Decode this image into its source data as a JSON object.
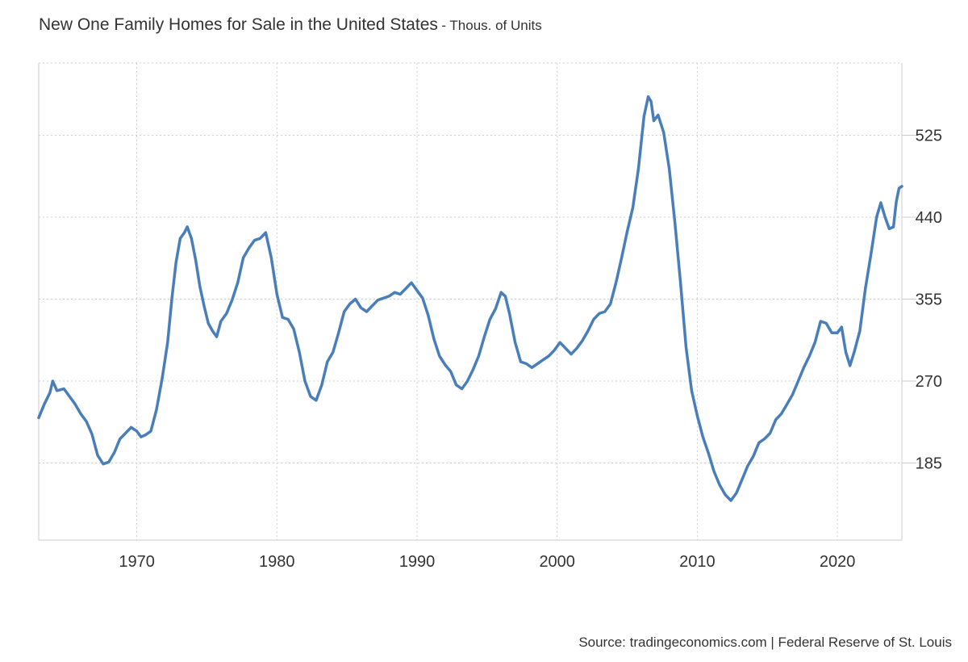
{
  "chart_data": {
    "type": "line",
    "title": "New One Family Homes for Sale in the United States",
    "subtitle": "- Thous. of Units",
    "xlabel": "",
    "ylabel": "",
    "xlim": [
      1963.0,
      2024.6
    ],
    "ylim": [
      105,
      600
    ],
    "x_ticks": [
      1970,
      1980,
      1990,
      2000,
      2010,
      2020
    ],
    "y_ticks": [
      185,
      270,
      355,
      440,
      525
    ],
    "grid": true,
    "legend": "none",
    "series": [
      {
        "color": "#4a7ebb",
        "points": [
          [
            1963.0,
            232
          ],
          [
            1963.4,
            246
          ],
          [
            1963.8,
            258
          ],
          [
            1964.0,
            270
          ],
          [
            1964.3,
            260
          ],
          [
            1964.8,
            262
          ],
          [
            1965.2,
            254
          ],
          [
            1965.6,
            246
          ],
          [
            1966.0,
            236
          ],
          [
            1966.4,
            228
          ],
          [
            1966.8,
            215
          ],
          [
            1967.2,
            193
          ],
          [
            1967.6,
            184
          ],
          [
            1968.0,
            186
          ],
          [
            1968.4,
            196
          ],
          [
            1968.8,
            210
          ],
          [
            1969.2,
            216
          ],
          [
            1969.6,
            222
          ],
          [
            1970.0,
            218
          ],
          [
            1970.3,
            212
          ],
          [
            1970.6,
            214
          ],
          [
            1971.0,
            218
          ],
          [
            1971.4,
            240
          ],
          [
            1971.8,
            272
          ],
          [
            1972.2,
            310
          ],
          [
            1972.5,
            355
          ],
          [
            1972.8,
            393
          ],
          [
            1973.1,
            418
          ],
          [
            1973.4,
            424
          ],
          [
            1973.6,
            430
          ],
          [
            1973.9,
            418
          ],
          [
            1974.2,
            396
          ],
          [
            1974.5,
            368
          ],
          [
            1974.8,
            348
          ],
          [
            1975.1,
            330
          ],
          [
            1975.4,
            322
          ],
          [
            1975.7,
            316
          ],
          [
            1976.0,
            332
          ],
          [
            1976.4,
            340
          ],
          [
            1976.8,
            354
          ],
          [
            1977.2,
            372
          ],
          [
            1977.6,
            398
          ],
          [
            1978.0,
            408
          ],
          [
            1978.4,
            416
          ],
          [
            1978.8,
            418
          ],
          [
            1979.2,
            424
          ],
          [
            1979.6,
            398
          ],
          [
            1980.0,
            360
          ],
          [
            1980.4,
            336
          ],
          [
            1980.8,
            334
          ],
          [
            1981.2,
            324
          ],
          [
            1981.6,
            300
          ],
          [
            1982.0,
            270
          ],
          [
            1982.4,
            254
          ],
          [
            1982.8,
            250
          ],
          [
            1983.2,
            266
          ],
          [
            1983.6,
            290
          ],
          [
            1984.0,
            300
          ],
          [
            1984.4,
            320
          ],
          [
            1984.8,
            342
          ],
          [
            1985.2,
            350
          ],
          [
            1985.6,
            355
          ],
          [
            1986.0,
            346
          ],
          [
            1986.4,
            342
          ],
          [
            1986.8,
            348
          ],
          [
            1987.2,
            354
          ],
          [
            1987.6,
            356
          ],
          [
            1988.0,
            358
          ],
          [
            1988.4,
            362
          ],
          [
            1988.8,
            360
          ],
          [
            1989.2,
            366
          ],
          [
            1989.6,
            372
          ],
          [
            1990.0,
            364
          ],
          [
            1990.4,
            356
          ],
          [
            1990.8,
            338
          ],
          [
            1991.2,
            314
          ],
          [
            1991.6,
            296
          ],
          [
            1992.0,
            287
          ],
          [
            1992.4,
            280
          ],
          [
            1992.8,
            266
          ],
          [
            1993.2,
            262
          ],
          [
            1993.6,
            270
          ],
          [
            1994.0,
            282
          ],
          [
            1994.4,
            296
          ],
          [
            1994.8,
            316
          ],
          [
            1995.2,
            334
          ],
          [
            1995.6,
            345
          ],
          [
            1996.0,
            362
          ],
          [
            1996.3,
            358
          ],
          [
            1996.6,
            340
          ],
          [
            1997.0,
            310
          ],
          [
            1997.4,
            290
          ],
          [
            1997.8,
            288
          ],
          [
            1998.2,
            284
          ],
          [
            1998.6,
            288
          ],
          [
            1999.0,
            292
          ],
          [
            1999.4,
            296
          ],
          [
            1999.8,
            302
          ],
          [
            2000.2,
            310
          ],
          [
            2000.6,
            304
          ],
          [
            2001.0,
            298
          ],
          [
            2001.4,
            304
          ],
          [
            2001.8,
            312
          ],
          [
            2002.2,
            322
          ],
          [
            2002.6,
            334
          ],
          [
            2003.0,
            340
          ],
          [
            2003.4,
            342
          ],
          [
            2003.8,
            350
          ],
          [
            2004.2,
            372
          ],
          [
            2004.6,
            398
          ],
          [
            2005.0,
            425
          ],
          [
            2005.4,
            450
          ],
          [
            2005.8,
            490
          ],
          [
            2006.2,
            545
          ],
          [
            2006.5,
            565
          ],
          [
            2006.7,
            560
          ],
          [
            2006.9,
            540
          ],
          [
            2007.2,
            546
          ],
          [
            2007.6,
            528
          ],
          [
            2008.0,
            490
          ],
          [
            2008.4,
            435
          ],
          [
            2008.8,
            372
          ],
          [
            2009.2,
            305
          ],
          [
            2009.6,
            260
          ],
          [
            2010.0,
            234
          ],
          [
            2010.4,
            212
          ],
          [
            2010.8,
            195
          ],
          [
            2011.2,
            176
          ],
          [
            2011.6,
            162
          ],
          [
            2012.0,
            152
          ],
          [
            2012.4,
            146
          ],
          [
            2012.8,
            154
          ],
          [
            2013.2,
            168
          ],
          [
            2013.6,
            182
          ],
          [
            2014.0,
            192
          ],
          [
            2014.4,
            206
          ],
          [
            2014.8,
            210
          ],
          [
            2015.2,
            216
          ],
          [
            2015.6,
            230
          ],
          [
            2016.0,
            236
          ],
          [
            2016.4,
            246
          ],
          [
            2016.8,
            256
          ],
          [
            2017.2,
            270
          ],
          [
            2017.6,
            284
          ],
          [
            2018.0,
            296
          ],
          [
            2018.4,
            310
          ],
          [
            2018.8,
            332
          ],
          [
            2019.2,
            330
          ],
          [
            2019.6,
            320
          ],
          [
            2020.0,
            320
          ],
          [
            2020.3,
            326
          ],
          [
            2020.6,
            300
          ],
          [
            2020.9,
            286
          ],
          [
            2021.2,
            300
          ],
          [
            2021.6,
            322
          ],
          [
            2022.0,
            366
          ],
          [
            2022.4,
            402
          ],
          [
            2022.8,
            440
          ],
          [
            2023.1,
            455
          ],
          [
            2023.4,
            440
          ],
          [
            2023.7,
            428
          ],
          [
            2024.0,
            430
          ],
          [
            2024.2,
            456
          ],
          [
            2024.4,
            470
          ],
          [
            2024.6,
            472
          ]
        ]
      }
    ]
  },
  "source": "Source: tradingeconomics.com | Federal Reserve of St. Louis"
}
